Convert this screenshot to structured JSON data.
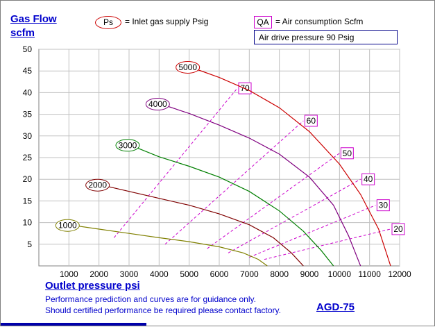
{
  "header": {
    "ylabel_line1": "Gas Flow",
    "ylabel_line2": "scfm",
    "ps_symbol": "Ps",
    "ps_text": "= Inlet gas supply  Psig",
    "qa_symbol": "QA",
    "qa_text": "= Air consumption  Scfm",
    "drive_pressure": "Air drive pressure  90 Psig"
  },
  "footer": {
    "xlabel": "Outlet pressure   psi",
    "note_line1": "Performance prediction and curves are for guidance only.",
    "note_line2": "Should certified performance be required please contact factory.",
    "model": "AGD-75"
  },
  "colors": {
    "title_blue": "#0000cc",
    "grid": "#c0c0c0",
    "ps_1000": "#808000",
    "ps_2000": "#800000",
    "ps_3000": "#007f00",
    "ps_4000": "#800080",
    "ps_5000": "#cc0000",
    "qa_lines": "#cc00cc"
  },
  "chart_data": {
    "type": "line",
    "title": "",
    "xlabel": "Outlet pressure   psi",
    "ylabel": "Gas Flow scfm",
    "xlim": [
      0,
      12000
    ],
    "ylim": [
      0,
      50
    ],
    "xticks": [
      "1000",
      "2000",
      "3000",
      "4000",
      "5000",
      "6000",
      "7000",
      "8000",
      "9000",
      "10000",
      "11000",
      "12000"
    ],
    "yticks": [
      "5",
      "10",
      "15",
      "20",
      "25",
      "30",
      "35",
      "40",
      "45",
      "50"
    ],
    "grid": true,
    "series": [
      {
        "name": "1000",
        "label": "1000",
        "color_key": "ps_1000",
        "x": [
          1000,
          2000,
          3000,
          4000,
          5000,
          6000,
          6800,
          7300,
          7600
        ],
        "y": [
          9.5,
          8.5,
          7.5,
          6.5,
          5.6,
          4.4,
          3.0,
          1.5,
          0
        ]
      },
      {
        "name": "2000",
        "label": "2000",
        "color_key": "ps_2000",
        "x": [
          2000,
          3000,
          4000,
          5000,
          6000,
          7000,
          7800,
          8400,
          8800
        ],
        "y": [
          18.8,
          17.2,
          15.6,
          14.0,
          12.0,
          9.5,
          6.5,
          3.0,
          0
        ]
      },
      {
        "name": "3000",
        "label": "3000",
        "color_key": "ps_3000",
        "x": [
          3000,
          4000,
          5000,
          6000,
          7000,
          8000,
          8800,
          9400,
          9800
        ],
        "y": [
          28.0,
          25.2,
          23.0,
          20.5,
          17.2,
          12.7,
          8.0,
          3.5,
          0
        ]
      },
      {
        "name": "4000",
        "label": "4000",
        "color_key": "ps_4000",
        "x": [
          4000,
          5000,
          6000,
          7000,
          8000,
          9000,
          9800,
          10300,
          10700
        ],
        "y": [
          37.5,
          35.2,
          32.5,
          29.5,
          25.8,
          20.5,
          14.0,
          7.0,
          0
        ]
      },
      {
        "name": "5000",
        "label": "5000",
        "color_key": "ps_5000",
        "x": [
          5000,
          6000,
          7000,
          8000,
          9000,
          10000,
          10700,
          11300,
          11700
        ],
        "y": [
          46.0,
          43.5,
          40.5,
          36.5,
          31.0,
          23.5,
          16.5,
          8.5,
          0
        ]
      }
    ],
    "qa_lines": [
      {
        "label": "70",
        "x": [
          2500,
          6600
        ],
        "y": [
          6.5,
          41.0
        ]
      },
      {
        "label": "60",
        "x": [
          4200,
          8800
        ],
        "y": [
          5.0,
          33.5
        ]
      },
      {
        "label": "50",
        "x": [
          5600,
          10000
        ],
        "y": [
          4.0,
          26.0
        ]
      },
      {
        "label": "40",
        "x": [
          6300,
          10700
        ],
        "y": [
          3.0,
          20.0
        ]
      },
      {
        "label": "30",
        "x": [
          7000,
          11200
        ],
        "y": [
          2.0,
          14.0
        ]
      },
      {
        "label": "20",
        "x": [
          7500,
          11700
        ],
        "y": [
          1.5,
          8.5
        ]
      }
    ]
  }
}
